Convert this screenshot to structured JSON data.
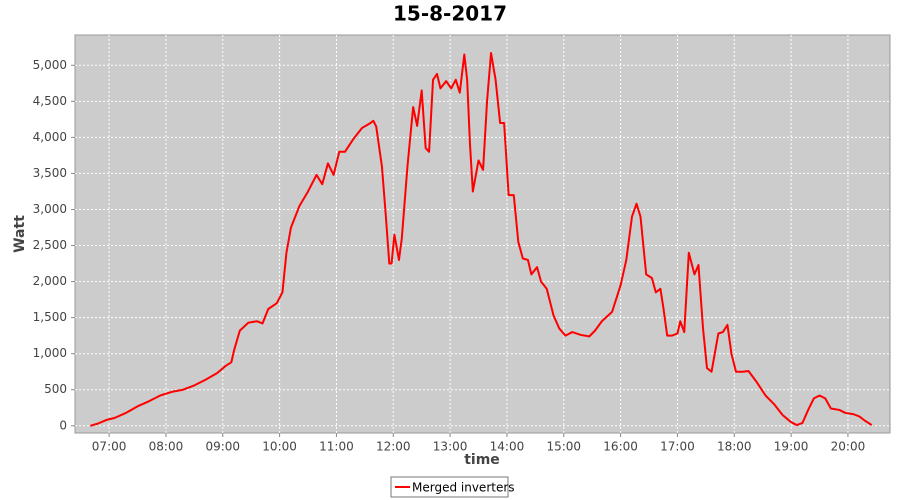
{
  "chart_data": {
    "type": "line",
    "title": "15-8-2017",
    "x_label": "time",
    "y_label": "Watt",
    "xlim": [
      6.4,
      20.74
    ],
    "ylim": [
      -100,
      5420
    ],
    "xticks": [
      {
        "value": 7,
        "label": "07:00"
      },
      {
        "value": 8,
        "label": "08:00"
      },
      {
        "value": 9,
        "label": "09:00"
      },
      {
        "value": 10,
        "label": "10:00"
      },
      {
        "value": 11,
        "label": "11:00"
      },
      {
        "value": 12,
        "label": "12:00"
      },
      {
        "value": 13,
        "label": "13:00"
      },
      {
        "value": 14,
        "label": "14:00"
      },
      {
        "value": 15,
        "label": "15:00"
      },
      {
        "value": 16,
        "label": "16:00"
      },
      {
        "value": 17,
        "label": "17:00"
      },
      {
        "value": 18,
        "label": "18:00"
      },
      {
        "value": 19,
        "label": "19:00"
      },
      {
        "value": 20,
        "label": "20:00"
      }
    ],
    "yticks": [
      0,
      500,
      {
        "value": 1000,
        "label": "1,000"
      },
      {
        "value": 1500,
        "label": "1,500"
      },
      {
        "value": 2000,
        "label": "2,000"
      },
      {
        "value": 2500,
        "label": "2,500"
      },
      {
        "value": 3000,
        "label": "3,000"
      },
      {
        "value": 3500,
        "label": "3,500"
      },
      {
        "value": 4000,
        "label": "4,000"
      },
      {
        "value": 4500,
        "label": "4,500"
      },
      {
        "value": 5000,
        "label": "5,000"
      }
    ],
    "grid": true,
    "legend": "bottom",
    "x": [
      6.67,
      6.8,
      6.95,
      7.1,
      7.3,
      7.5,
      7.7,
      7.9,
      8.1,
      8.3,
      8.5,
      8.7,
      8.9,
      9.05,
      9.15,
      9.2,
      9.3,
      9.45,
      9.6,
      9.7,
      9.8,
      9.95,
      10.05,
      10.12,
      10.2,
      10.35,
      10.5,
      10.65,
      10.75,
      10.85,
      10.95,
      11.05,
      11.15,
      11.3,
      11.45,
      11.6,
      11.65,
      11.7,
      11.8,
      11.87,
      11.93,
      11.97,
      12.02,
      12.1,
      12.15,
      12.25,
      12.35,
      12.42,
      12.5,
      12.57,
      12.63,
      12.7,
      12.77,
      12.83,
      12.93,
      13.02,
      13.1,
      13.17,
      13.25,
      13.3,
      13.35,
      13.4,
      13.5,
      13.58,
      13.65,
      13.72,
      13.8,
      13.88,
      13.95,
      14.03,
      14.12,
      14.2,
      14.28,
      14.37,
      14.43,
      14.53,
      14.6,
      14.7,
      14.82,
      14.92,
      15.03,
      15.15,
      15.3,
      15.45,
      15.55,
      15.67,
      15.85,
      16.0,
      16.1,
      16.2,
      16.28,
      16.35,
      16.45,
      16.55,
      16.62,
      16.7,
      16.75,
      16.82,
      16.9,
      17.0,
      17.05,
      17.12,
      17.2,
      17.3,
      17.37,
      17.45,
      17.52,
      17.6,
      17.72,
      17.8,
      17.88,
      17.95,
      18.03,
      18.15,
      18.25,
      18.4,
      18.55,
      18.7,
      18.85,
      19.0,
      19.1,
      19.2,
      19.3,
      19.4,
      19.5,
      19.6,
      19.7,
      19.85,
      19.95,
      20.1,
      20.2,
      20.3,
      20.42
    ],
    "series": [
      {
        "name": "Merged inverters",
        "color": "#ff0000",
        "values": [
          0,
          30,
          80,
          110,
          180,
          270,
          340,
          420,
          470,
          500,
          560,
          640,
          730,
          830,
          880,
          1050,
          1320,
          1430,
          1450,
          1420,
          1620,
          1700,
          1850,
          2400,
          2750,
          3050,
          3250,
          3480,
          3350,
          3640,
          3480,
          3800,
          3800,
          3980,
          4130,
          4200,
          4230,
          4150,
          3600,
          2900,
          2250,
          2250,
          2650,
          2300,
          2600,
          3600,
          4420,
          4160,
          4650,
          3850,
          3800,
          4800,
          4880,
          4680,
          4780,
          4680,
          4800,
          4620,
          5150,
          4800,
          3900,
          3250,
          3680,
          3550,
          4500,
          5170,
          4800,
          4200,
          4200,
          3200,
          3200,
          2550,
          2320,
          2300,
          2100,
          2200,
          2000,
          1900,
          1530,
          1350,
          1250,
          1300,
          1260,
          1240,
          1320,
          1450,
          1580,
          1950,
          2300,
          2900,
          3080,
          2900,
          2100,
          2050,
          1850,
          1900,
          1650,
          1250,
          1250,
          1280,
          1450,
          1300,
          2400,
          2100,
          2230,
          1350,
          800,
          750,
          1280,
          1300,
          1400,
          1000,
          750,
          750,
          760,
          600,
          420,
          300,
          150,
          50,
          10,
          40,
          220,
          380,
          420,
          380,
          240,
          220,
          180,
          160,
          130,
          70,
          10
        ]
      }
    ]
  }
}
